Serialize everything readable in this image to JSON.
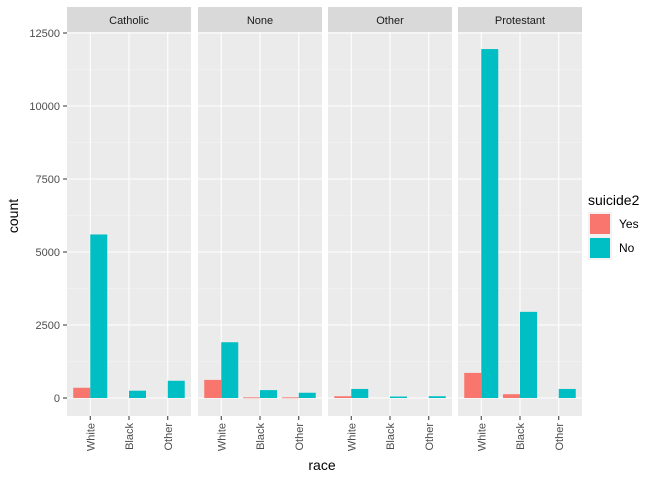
{
  "chart_data": {
    "type": "bar",
    "facet_var": "religion",
    "facets": [
      "Catholic",
      "None",
      "Other",
      "Protestant"
    ],
    "categories": [
      "White",
      "Black",
      "Other"
    ],
    "xlabel": "race",
    "ylabel": "count",
    "ylim": [
      0,
      12500
    ],
    "yticks": [
      0,
      2500,
      5000,
      7500,
      10000,
      12500
    ],
    "yticklabels": [
      "0",
      "2500",
      "5000",
      "7500",
      "10000",
      "12500"
    ],
    "grid": true,
    "legend": {
      "title": "suicide2",
      "position": "right",
      "entries": [
        {
          "name": "Yes",
          "color": "#F8766D"
        },
        {
          "name": "No",
          "color": "#00BFC4"
        }
      ]
    },
    "series": [
      {
        "name": "Yes",
        "color": "#F8766D",
        "values": {
          "Catholic": [
            350,
            0,
            0
          ],
          "None": [
            620,
            20,
            20
          ],
          "Other": [
            60,
            0,
            0
          ],
          "Protestant": [
            860,
            130,
            0
          ]
        }
      },
      {
        "name": "No",
        "color": "#00BFC4",
        "values": {
          "Catholic": [
            5600,
            250,
            590
          ],
          "None": [
            1910,
            270,
            180
          ],
          "Other": [
            310,
            50,
            60
          ],
          "Protestant": [
            11950,
            2950,
            310
          ]
        }
      }
    ]
  }
}
